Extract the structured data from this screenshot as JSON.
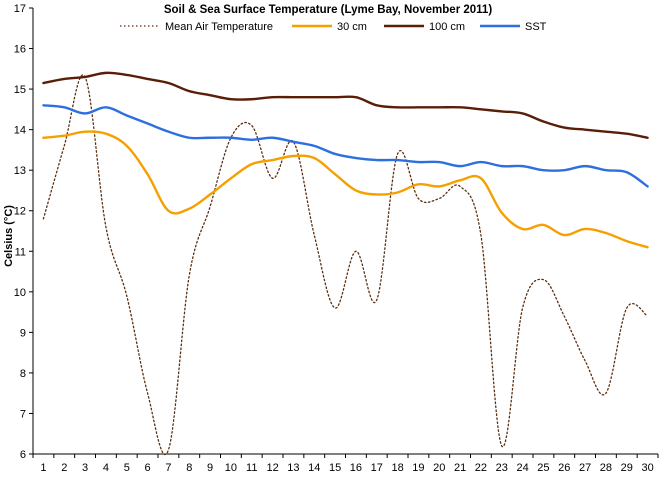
{
  "chart_data": {
    "type": "line",
    "title": "Soil & Sea Surface Temperature (Lyme Bay, November 2011)",
    "ylabel": "Celsius (°C)",
    "xlabel": "",
    "x": [
      1,
      2,
      3,
      4,
      5,
      6,
      7,
      8,
      9,
      10,
      11,
      12,
      13,
      14,
      15,
      16,
      17,
      18,
      19,
      20,
      21,
      22,
      23,
      24,
      25,
      26,
      27,
      28,
      29,
      30
    ],
    "ylim": [
      6,
      17
    ],
    "yticks": [
      6,
      7,
      8,
      9,
      10,
      11,
      12,
      13,
      14,
      15,
      16,
      17
    ],
    "grid": false,
    "legend_position": "top",
    "series": [
      {
        "name": "Mean Air Temperature",
        "color": "#5a2e0e",
        "style": "dotted",
        "values": [
          11.8,
          13.6,
          15.3,
          11.6,
          9.9,
          7.5,
          6.1,
          10.4,
          12.1,
          13.8,
          14.1,
          12.8,
          13.7,
          11.4,
          9.6,
          11.0,
          9.8,
          13.4,
          12.3,
          12.3,
          12.6,
          11.4,
          6.2,
          9.6,
          10.3,
          9.4,
          8.3,
          7.5,
          9.6,
          9.4
        ]
      },
      {
        "name": "30 cm",
        "color": "#f5a000",
        "style": "solid",
        "values": [
          13.8,
          13.85,
          13.95,
          13.9,
          13.6,
          12.9,
          12.0,
          12.05,
          12.4,
          12.8,
          13.15,
          13.25,
          13.35,
          13.3,
          12.9,
          12.5,
          12.4,
          12.45,
          12.65,
          12.6,
          12.75,
          12.8,
          11.95,
          11.55,
          11.65,
          11.4,
          11.55,
          11.45,
          11.25,
          11.1
        ]
      },
      {
        "name": "100 cm",
        "color": "#5a1e08",
        "style": "solid",
        "values": [
          15.15,
          15.25,
          15.3,
          15.4,
          15.35,
          15.25,
          15.15,
          14.95,
          14.85,
          14.75,
          14.75,
          14.8,
          14.8,
          14.8,
          14.8,
          14.8,
          14.6,
          14.55,
          14.55,
          14.55,
          14.55,
          14.5,
          14.45,
          14.4,
          14.2,
          14.05,
          14.0,
          13.95,
          13.9,
          13.8
        ]
      },
      {
        "name": "SST",
        "color": "#2e6fe0",
        "style": "solid",
        "values": [
          14.6,
          14.55,
          14.4,
          14.55,
          14.35,
          14.15,
          13.95,
          13.8,
          13.8,
          13.8,
          13.75,
          13.8,
          13.7,
          13.6,
          13.4,
          13.3,
          13.25,
          13.25,
          13.2,
          13.2,
          13.1,
          13.2,
          13.1,
          13.1,
          13.0,
          13.0,
          13.1,
          13.0,
          12.95,
          12.6
        ]
      }
    ]
  }
}
